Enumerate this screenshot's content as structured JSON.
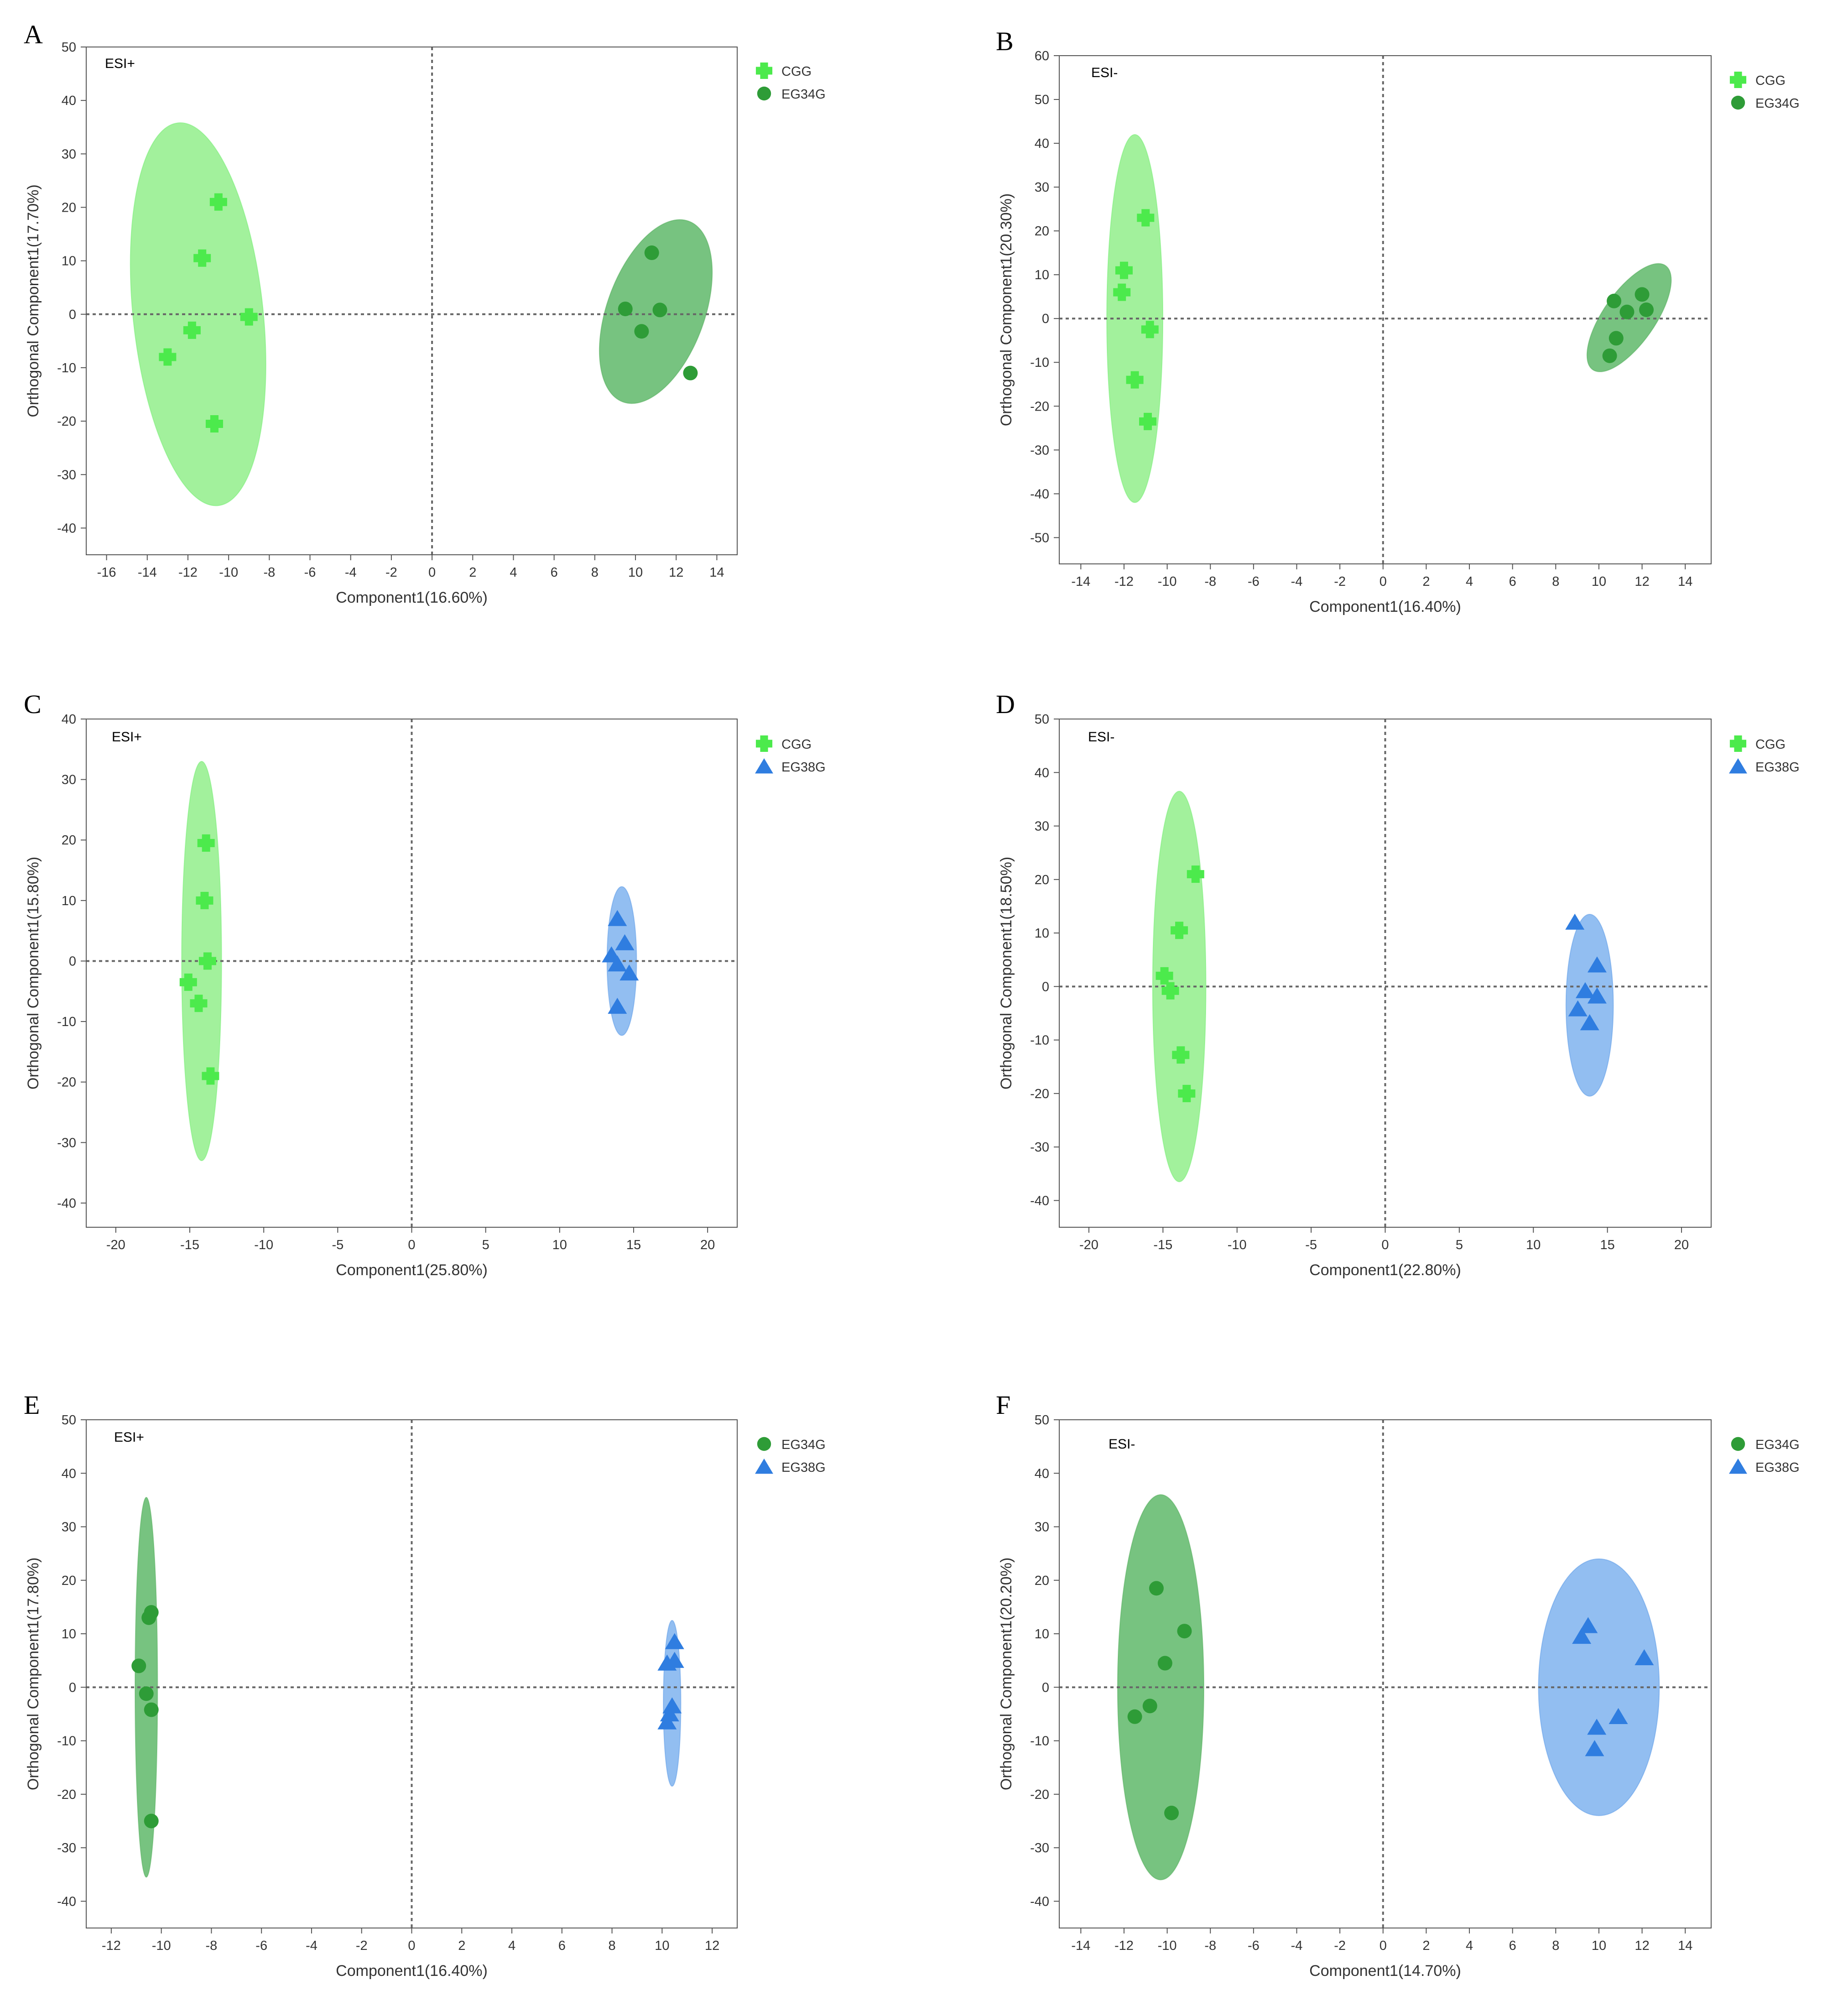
{
  "figure_title": "",
  "colors": {
    "CGG": "#4cea4c",
    "CGG_ellipse": "#92ef8b",
    "EG34G": "#2e9c37",
    "EG34G_ellipse": "#5fb96a",
    "EG38G": "#2f7de0",
    "EG38G_ellipse": "#7fb3ef",
    "axis": "#333333",
    "refline": "#666666"
  },
  "chart_data": [
    {
      "panel": "A",
      "type": "scatter",
      "mode": "ESI+",
      "xlabel": "Component1(16.60%)",
      "ylabel": "Orthogonal Component1(17.70%)",
      "xlim": [
        -17,
        15
      ],
      "ylim": [
        -45,
        50
      ],
      "xticks": [
        -16,
        -14,
        -12,
        -10,
        -8,
        -6,
        -4,
        -2,
        0,
        2,
        4,
        6,
        8,
        10,
        12,
        14
      ],
      "yticks": [
        -40,
        -30,
        -20,
        -10,
        0,
        10,
        20,
        30,
        40,
        50
      ],
      "series": [
        {
          "name": "CGG",
          "marker": "cross",
          "ellipse": {
            "cx": -11.5,
            "cy": 0,
            "rx": 3.2,
            "ry": 36,
            "angle": -6
          },
          "x": [
            -10.5,
            -11.3,
            -9,
            -11.8,
            -13,
            -10.7
          ],
          "y": [
            21,
            10.5,
            -0.5,
            -3,
            -8,
            -20.5
          ]
        },
        {
          "name": "EG34G",
          "marker": "circle",
          "ellipse": {
            "cx": 11,
            "cy": 0.5,
            "rx": 2.4,
            "ry": 18,
            "angle": 20
          },
          "x": [
            10.8,
            9.5,
            11.2,
            10.3,
            12.7
          ],
          "y": [
            11.5,
            1,
            0.8,
            -3.2,
            -11
          ]
        }
      ]
    },
    {
      "panel": "B",
      "type": "scatter",
      "mode": "ESI-",
      "xlabel": "Component1(16.40%)",
      "ylabel": "Orthogonal Component1(20.30%)",
      "xlim": [
        -15,
        15.2
      ],
      "ylim": [
        -56,
        60
      ],
      "xticks": [
        -14,
        -12,
        -10,
        -8,
        -6,
        -4,
        -2,
        0,
        2,
        4,
        6,
        8,
        10,
        12,
        14
      ],
      "yticks": [
        -50,
        -40,
        -30,
        -20,
        -10,
        0,
        10,
        20,
        30,
        40,
        50,
        60
      ],
      "series": [
        {
          "name": "CGG",
          "marker": "cross",
          "ellipse": {
            "cx": -11.5,
            "cy": 0,
            "rx": 1.3,
            "ry": 42,
            "angle": 0
          },
          "x": [
            -11,
            -12,
            -12.1,
            -10.8,
            -11.5,
            -10.9
          ],
          "y": [
            23,
            11,
            6,
            -2.5,
            -14,
            -23.5
          ]
        },
        {
          "name": "EG34G",
          "marker": "circle",
          "ellipse": {
            "cx": 11.4,
            "cy": 0.2,
            "rx": 1.2,
            "ry": 14.5,
            "angle": 35
          },
          "x": [
            10.7,
            11.3,
            12,
            12.2,
            10.8,
            10.5
          ],
          "y": [
            4,
            1.5,
            5.5,
            2,
            -4.5,
            -8.5
          ]
        }
      ]
    },
    {
      "panel": "C",
      "type": "scatter",
      "mode": "ESI+",
      "xlabel": "Component1(25.80%)",
      "ylabel": "Orthogonal Component1(15.80%)",
      "xlim": [
        -22,
        22
      ],
      "ylim": [
        -44,
        40
      ],
      "xticks": [
        -20,
        -15,
        -10,
        -5,
        0,
        5,
        10,
        15,
        20
      ],
      "yticks": [
        -40,
        -30,
        -20,
        -10,
        0,
        10,
        20,
        30,
        40
      ],
      "series": [
        {
          "name": "CGG",
          "marker": "cross",
          "ellipse": {
            "cx": -14.2,
            "cy": 0,
            "rx": 1.35,
            "ry": 33,
            "angle": 0
          },
          "x": [
            -13.9,
            -14,
            -13.8,
            -15.1,
            -14.4,
            -13.6
          ],
          "y": [
            19.5,
            10,
            0,
            -3.5,
            -7,
            -19
          ]
        },
        {
          "name": "EG38G",
          "marker": "triangle",
          "ellipse": {
            "cx": 14.2,
            "cy": 0,
            "rx": 1,
            "ry": 12.3,
            "angle": 0
          },
          "x": [
            13.9,
            14.4,
            13.5,
            13.9,
            14.7,
            13.9
          ],
          "y": [
            7,
            3,
            1,
            -0.5,
            -2,
            -7.5
          ]
        }
      ]
    },
    {
      "panel": "D",
      "type": "scatter",
      "mode": "ESI-",
      "xlabel": "Component1(22.80%)",
      "ylabel": "Orthogonal Component1(18.50%)",
      "xlim": [
        -22,
        22
      ],
      "ylim": [
        -45,
        50
      ],
      "xticks": [
        -20,
        -15,
        -10,
        -5,
        0,
        5,
        10,
        15,
        20
      ],
      "yticks": [
        -40,
        -30,
        -20,
        -10,
        0,
        10,
        20,
        30,
        40,
        50
      ],
      "series": [
        {
          "name": "CGG",
          "marker": "cross",
          "ellipse": {
            "cx": -13.9,
            "cy": 0,
            "rx": 1.8,
            "ry": 36.5,
            "angle": 0
          },
          "x": [
            -12.8,
            -13.9,
            -14.9,
            -14.5,
            -13.8,
            -13.4
          ],
          "y": [
            21,
            10.5,
            2,
            -0.8,
            -12.8,
            -20
          ]
        },
        {
          "name": "EG38G",
          "marker": "triangle",
          "ellipse": {
            "cx": 13.8,
            "cy": -3.5,
            "rx": 1.6,
            "ry": 17,
            "angle": 0
          },
          "x": [
            12.8,
            14.3,
            13.5,
            14.3,
            13,
            13.8
          ],
          "y": [
            12,
            4,
            -0.8,
            -1.8,
            -4.2,
            -6.8
          ]
        }
      ]
    },
    {
      "panel": "E",
      "type": "scatter",
      "mode": "ESI+",
      "xlabel": "Component1(16.40%)",
      "ylabel": "Orthogonal Component1(17.80%)",
      "xlim": [
        -13,
        13
      ],
      "ylim": [
        -45,
        50
      ],
      "xticks": [
        -12,
        -10,
        -8,
        -6,
        -4,
        -2,
        0,
        2,
        4,
        6,
        8,
        10,
        12
      ],
      "yticks": [
        -40,
        -30,
        -20,
        -10,
        0,
        10,
        20,
        30,
        40,
        50
      ],
      "series": [
        {
          "name": "EG34G",
          "marker": "circle",
          "ellipse": {
            "cx": -10.6,
            "cy": 0,
            "rx": 0.45,
            "ry": 35.5,
            "angle": 0
          },
          "x": [
            -10.4,
            -10.5,
            -10.9,
            -10.6,
            -10.4,
            -10.4
          ],
          "y": [
            14,
            13,
            4,
            -1.2,
            -4.2,
            -25
          ]
        },
        {
          "name": "EG38G",
          "marker": "triangle",
          "ellipse": {
            "cx": 10.4,
            "cy": -3,
            "rx": 0.35,
            "ry": 15.5,
            "angle": 0
          },
          "x": [
            10.5,
            10.5,
            10.2,
            10.4,
            10.3,
            10.2
          ],
          "y": [
            8.5,
            5,
            4.5,
            -3.5,
            -5,
            -6.5
          ]
        }
      ]
    },
    {
      "panel": "F",
      "type": "scatter",
      "mode": "ESI-",
      "xlabel": "Component1(14.70%)",
      "ylabel": "Orthogonal Component1(20.20%)",
      "xlim": [
        -15,
        15.2
      ],
      "ylim": [
        -45,
        50
      ],
      "xticks": [
        -14,
        -12,
        -10,
        -8,
        -6,
        -4,
        -2,
        0,
        2,
        4,
        6,
        8,
        10,
        12,
        14
      ],
      "yticks": [
        -40,
        -30,
        -20,
        -10,
        0,
        10,
        20,
        30,
        40,
        50
      ],
      "series": [
        {
          "name": "EG34G",
          "marker": "circle",
          "ellipse": {
            "cx": -10.3,
            "cy": 0,
            "rx": 2,
            "ry": 36,
            "angle": 0
          },
          "x": [
            -10.5,
            -9.2,
            -10.1,
            -10.8,
            -11.5,
            -9.8
          ],
          "y": [
            18.5,
            10.5,
            4.5,
            -3.5,
            -5.5,
            -23.5
          ]
        },
        {
          "name": "EG38G",
          "marker": "triangle",
          "ellipse": {
            "cx": 10,
            "cy": 0,
            "rx": 2.8,
            "ry": 24,
            "angle": 0
          },
          "x": [
            9.5,
            9.2,
            12.1,
            10.9,
            9.9,
            9.8
          ],
          "y": [
            11.5,
            9.5,
            5.5,
            -5.5,
            -7.5,
            -11.5
          ]
        }
      ]
    }
  ]
}
